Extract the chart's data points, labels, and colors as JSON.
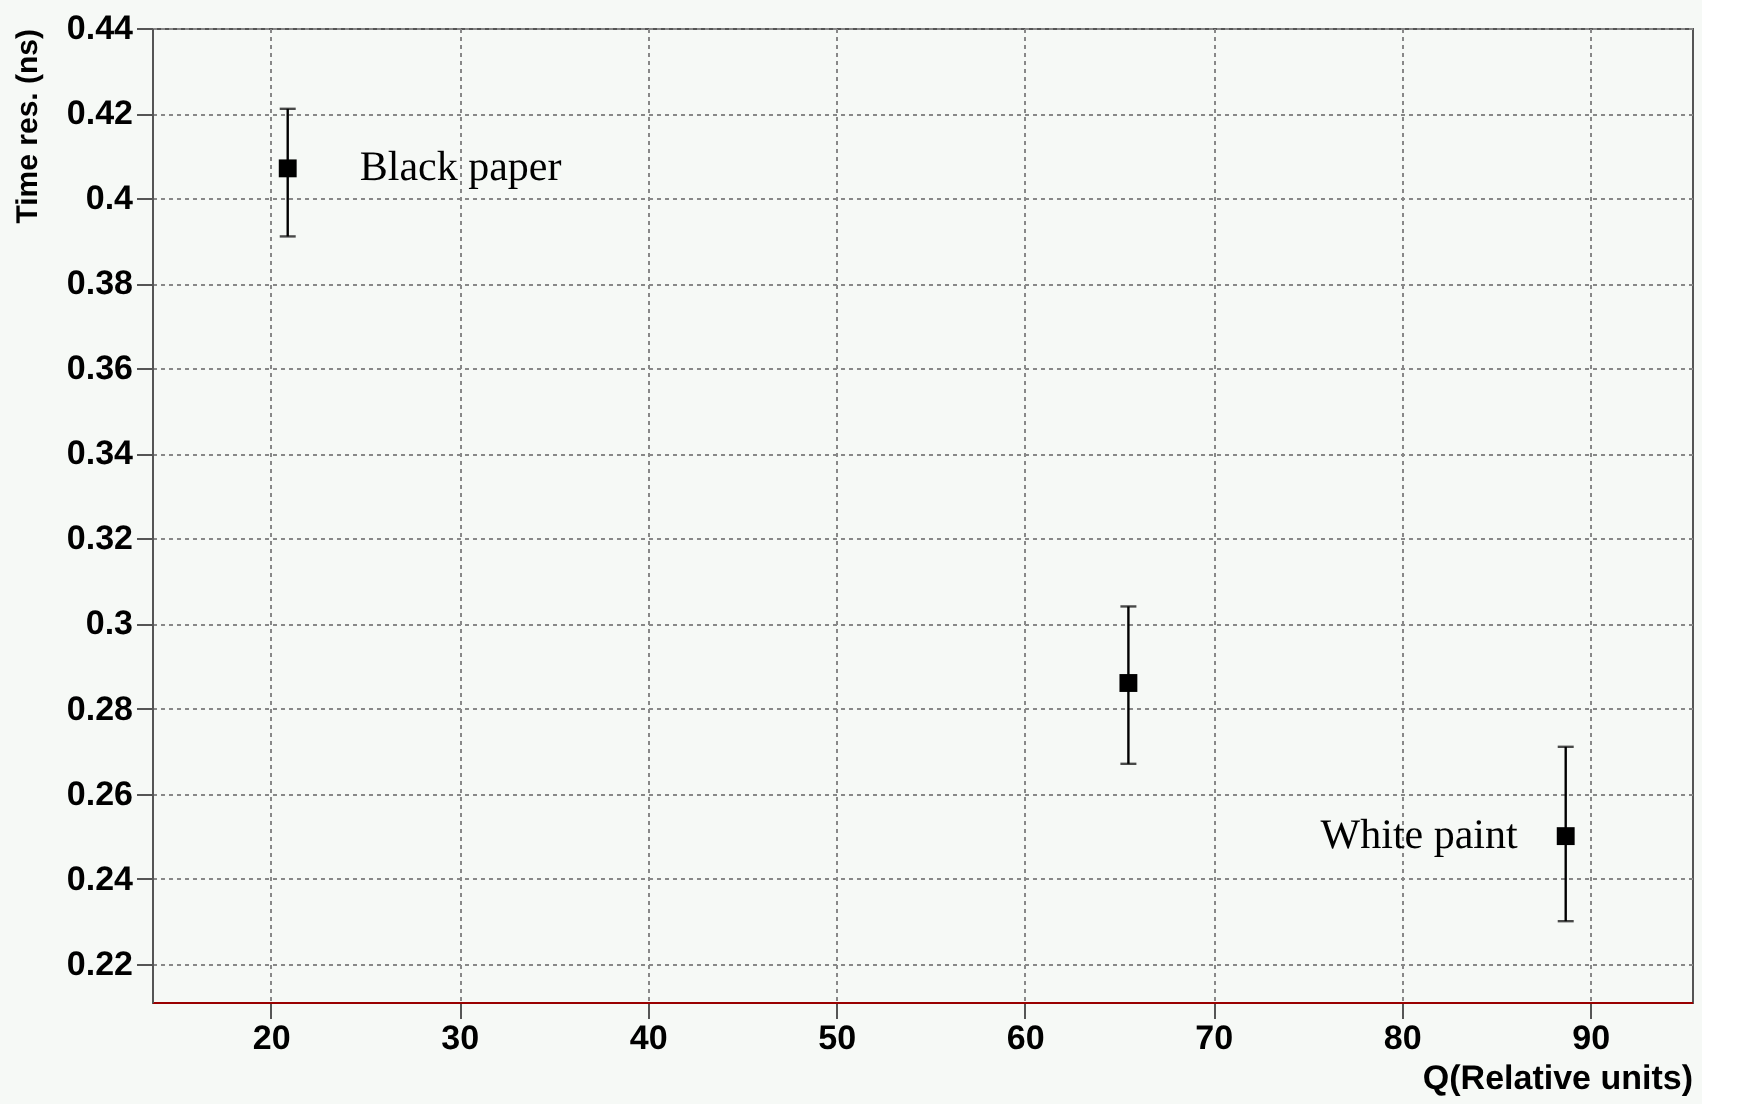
{
  "chart_data": {
    "type": "scatter",
    "xlabel": "Q(Relative units)",
    "ylabel": "Time res. (ns)",
    "x": [
      20.9,
      65.5,
      88.7
    ],
    "series": [
      {
        "color": "#000000",
        "values": [
          0.407,
          0.286,
          0.25
        ],
        "errors": [
          [
            0.391,
            0.421
          ],
          [
            0.267,
            0.304
          ],
          [
            0.23,
            0.271
          ]
        ]
      }
    ],
    "marker": "square",
    "xlim": [
      13.7,
      95.4
    ],
    "xticks": [
      20,
      30,
      40,
      50,
      60,
      70,
      80,
      90
    ],
    "ylim": [
      0.211,
      0.44
    ],
    "yticks": [
      0.22,
      0.24,
      0.26,
      0.28,
      0.3,
      0.32,
      0.34,
      0.36,
      0.38,
      0.4,
      0.42,
      0.44
    ],
    "grid": true,
    "annotations": [
      {
        "text": "Black paper",
        "x": 20.9,
        "y": 0.407
      },
      {
        "text": "White paint",
        "x": 88.7,
        "y": 0.25
      }
    ]
  }
}
